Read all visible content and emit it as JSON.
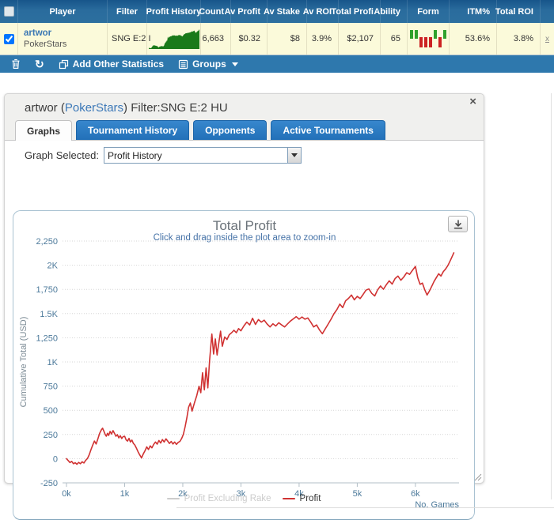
{
  "colors": {
    "header_blue": "#2c6f9f",
    "toolbar_blue": "#2e78ad",
    "tab_blue": "#2270b8",
    "row_yellow": "#fbfada",
    "link_blue": "#3b78b4",
    "sparkline_green": "#1a7a1a",
    "form_green": "#2fa12c",
    "form_red": "#cc2222",
    "line_red": "#d03232",
    "axis_slate": "#4d7a9b",
    "subtitle_blue": "#4572a7"
  },
  "table": {
    "columns": [
      "",
      "Player",
      "Filter",
      "Profit History",
      "Count",
      "Av Profit",
      "Av Stake",
      "Av ROI",
      "Total Profi",
      "Ability",
      "Form",
      "ITM%",
      "Total ROI",
      ""
    ],
    "row": {
      "player_name": "artwor",
      "site": "PokerStars",
      "filter": "SNG E:2 I",
      "count": "6,663",
      "av_profit": "$0.32",
      "av_stake": "$8",
      "av_roi": "3.9%",
      "total_profit": "$2,107",
      "ability": "65",
      "itm": "53.6%",
      "total_roi": "3.8%",
      "remove_label": "x",
      "form": [
        "up",
        "up",
        "down",
        "down",
        "down",
        "up",
        "down",
        "up"
      ]
    },
    "toolbar": {
      "add_other_statistics_label": "Add Other Statistics",
      "groups_label": "Groups"
    }
  },
  "panel": {
    "title_pre": "artwor (",
    "title_site": "PokerStars",
    "title_post": ") Filter:SNG E:2 HU",
    "close_label": "×",
    "tabs": [
      "Graphs",
      "Tournament History",
      "Opponents",
      "Active Tournaments"
    ],
    "graph_selected_label": "Graph Selected:",
    "graph_selected_value": "Profit History"
  },
  "chart_data": {
    "type": "line",
    "title": "Total Profit",
    "subtitle": "Click and drag inside the plot area to zoom-in",
    "ylabel": "Cumulative Total (USD)",
    "xlabel": "No. Games",
    "ylim": [
      -250,
      2250
    ],
    "xlim": [
      0,
      6750
    ],
    "grid": "dotted-horizontal",
    "legend_position": "bottom-center",
    "y_tick_values": [
      -250,
      0,
      250,
      500,
      750,
      1000,
      1250,
      1500,
      1750,
      2000,
      2250
    ],
    "y_tick_labels": [
      "-250",
      "0",
      "250",
      "500",
      "750",
      "1K",
      "1,250",
      "1.5K",
      "1,750",
      "2K",
      "2,250"
    ],
    "x_tick_values": [
      0,
      1000,
      2000,
      3000,
      4000,
      5000,
      6000
    ],
    "x_tick_labels": [
      "0k",
      "1k",
      "2k",
      "3k",
      "4k",
      "5k",
      "6k"
    ],
    "legend": [
      {
        "name": "Profit Excluding Rake",
        "color": "#cccccc",
        "text_color": "#cccccc",
        "disabled": true
      },
      {
        "name": "Profit",
        "color": "#d03232",
        "text_color": "#333333",
        "disabled": false
      }
    ],
    "series": [
      {
        "name": "Profit",
        "color": "#d03232",
        "points": [
          [
            0,
            0
          ],
          [
            30,
            -20
          ],
          [
            60,
            -40
          ],
          [
            90,
            -28
          ],
          [
            120,
            -52
          ],
          [
            150,
            -42
          ],
          [
            180,
            -58
          ],
          [
            210,
            -38
          ],
          [
            240,
            -52
          ],
          [
            270,
            -32
          ],
          [
            300,
            -45
          ],
          [
            330,
            -18
          ],
          [
            360,
            2
          ],
          [
            390,
            40
          ],
          [
            420,
            92
          ],
          [
            450,
            140
          ],
          [
            480,
            182
          ],
          [
            510,
            152
          ],
          [
            540,
            205
          ],
          [
            570,
            262
          ],
          [
            600,
            298
          ],
          [
            620,
            315
          ],
          [
            645,
            282
          ],
          [
            665,
            250
          ],
          [
            685,
            232
          ],
          [
            705,
            262
          ],
          [
            725,
            240
          ],
          [
            750,
            282
          ],
          [
            775,
            255
          ],
          [
            800,
            290
          ],
          [
            825,
            262
          ],
          [
            850,
            232
          ],
          [
            875,
            248
          ],
          [
            900,
            215
          ],
          [
            925,
            238
          ],
          [
            950,
            208
          ],
          [
            975,
            228
          ],
          [
            1000,
            232
          ],
          [
            1025,
            195
          ],
          [
            1050,
            182
          ],
          [
            1075,
            210
          ],
          [
            1100,
            172
          ],
          [
            1125,
            192
          ],
          [
            1150,
            158
          ],
          [
            1175,
            142
          ],
          [
            1200,
            112
          ],
          [
            1230,
            72
          ],
          [
            1260,
            38
          ],
          [
            1290,
            8
          ],
          [
            1320,
            48
          ],
          [
            1350,
            82
          ],
          [
            1380,
            122
          ],
          [
            1410,
            95
          ],
          [
            1440,
            132
          ],
          [
            1470,
            112
          ],
          [
            1500,
            148
          ],
          [
            1530,
            172
          ],
          [
            1560,
            150
          ],
          [
            1590,
            188
          ],
          [
            1620,
            162
          ],
          [
            1650,
            198
          ],
          [
            1680,
            172
          ],
          [
            1710,
            205
          ],
          [
            1740,
            182
          ],
          [
            1770,
            158
          ],
          [
            1800,
            178
          ],
          [
            1830,
            152
          ],
          [
            1860,
            172
          ],
          [
            1890,
            148
          ],
          [
            1920,
            168
          ],
          [
            1950,
            178
          ],
          [
            1980,
            208
          ],
          [
            2010,
            252
          ],
          [
            2040,
            330
          ],
          [
            2070,
            422
          ],
          [
            2100,
            532
          ],
          [
            2130,
            575
          ],
          [
            2160,
            492
          ],
          [
            2200,
            578
          ],
          [
            2240,
            652
          ],
          [
            2280,
            748
          ],
          [
            2310,
            682
          ],
          [
            2340,
            888
          ],
          [
            2370,
            712
          ],
          [
            2400,
            938
          ],
          [
            2430,
            732
          ],
          [
            2460,
            1012
          ],
          [
            2500,
            1288
          ],
          [
            2530,
            1082
          ],
          [
            2560,
            1238
          ],
          [
            2590,
            1072
          ],
          [
            2620,
            1198
          ],
          [
            2650,
            1318
          ],
          [
            2680,
            1162
          ],
          [
            2720,
            1258
          ],
          [
            2760,
            1232
          ],
          [
            2800,
            1282
          ],
          [
            2840,
            1302
          ],
          [
            2880,
            1328
          ],
          [
            2920,
            1302
          ],
          [
            2960,
            1345
          ],
          [
            3000,
            1322
          ],
          [
            3050,
            1372
          ],
          [
            3100,
            1412
          ],
          [
            3150,
            1382
          ],
          [
            3200,
            1452
          ],
          [
            3250,
            1388
          ],
          [
            3300,
            1438
          ],
          [
            3350,
            1412
          ],
          [
            3400,
            1432
          ],
          [
            3450,
            1392
          ],
          [
            3500,
            1362
          ],
          [
            3550,
            1395
          ],
          [
            3600,
            1372
          ],
          [
            3650,
            1405
          ],
          [
            3700,
            1382
          ],
          [
            3750,
            1362
          ],
          [
            3800,
            1392
          ],
          [
            3850,
            1422
          ],
          [
            3900,
            1445
          ],
          [
            3950,
            1468
          ],
          [
            4000,
            1442
          ],
          [
            4050,
            1465
          ],
          [
            4100,
            1442
          ],
          [
            4150,
            1455
          ],
          [
            4200,
            1412
          ],
          [
            4250,
            1362
          ],
          [
            4300,
            1382
          ],
          [
            4350,
            1332
          ],
          [
            4400,
            1292
          ],
          [
            4450,
            1342
          ],
          [
            4500,
            1392
          ],
          [
            4550,
            1442
          ],
          [
            4600,
            1498
          ],
          [
            4650,
            1542
          ],
          [
            4700,
            1598
          ],
          [
            4750,
            1562
          ],
          [
            4800,
            1632
          ],
          [
            4850,
            1658
          ],
          [
            4900,
            1692
          ],
          [
            4950,
            1642
          ],
          [
            5000,
            1678
          ],
          [
            5050,
            1655
          ],
          [
            5100,
            1698
          ],
          [
            5150,
            1742
          ],
          [
            5200,
            1755
          ],
          [
            5250,
            1708
          ],
          [
            5300,
            1682
          ],
          [
            5350,
            1745
          ],
          [
            5400,
            1785
          ],
          [
            5450,
            1752
          ],
          [
            5500,
            1798
          ],
          [
            5550,
            1838
          ],
          [
            5600,
            1805
          ],
          [
            5650,
            1862
          ],
          [
            5700,
            1888
          ],
          [
            5750,
            1845
          ],
          [
            5800,
            1878
          ],
          [
            5850,
            1922
          ],
          [
            5900,
            1905
          ],
          [
            5950,
            1948
          ],
          [
            6000,
            1988
          ],
          [
            6040,
            1872
          ],
          [
            6080,
            1802
          ],
          [
            6120,
            1815
          ],
          [
            6160,
            1748
          ],
          [
            6200,
            1692
          ],
          [
            6240,
            1732
          ],
          [
            6280,
            1782
          ],
          [
            6320,
            1832
          ],
          [
            6360,
            1872
          ],
          [
            6400,
            1912
          ],
          [
            6440,
            1888
          ],
          [
            6480,
            1935
          ],
          [
            6520,
            1962
          ],
          [
            6560,
            1998
          ],
          [
            6600,
            2048
          ],
          [
            6630,
            2088
          ],
          [
            6660,
            2128
          ]
        ]
      }
    ]
  }
}
